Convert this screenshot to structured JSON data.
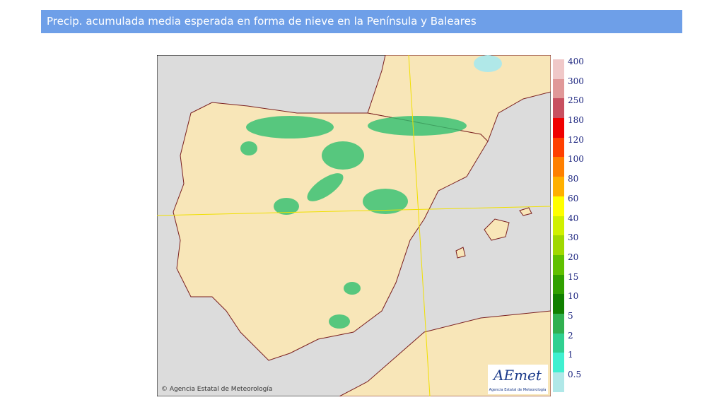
{
  "header": {
    "title": "Precip. acumulada media esperada en forma de nieve en la Península y Baleares"
  },
  "legend": {
    "items": [
      {
        "label": 400,
        "color": "#f0c8c8"
      },
      {
        "label": 300,
        "color": "#e09898"
      },
      {
        "label": 250,
        "color": "#c85060"
      },
      {
        "label": 180,
        "color": "#f00000"
      },
      {
        "label": 120,
        "color": "#ff4000"
      },
      {
        "label": 100,
        "color": "#ff8000"
      },
      {
        "label": 80,
        "color": "#ffb000"
      },
      {
        "label": 60,
        "color": "#ffff00"
      },
      {
        "label": 40,
        "color": "#d0f000"
      },
      {
        "label": 30,
        "color": "#a0d800"
      },
      {
        "label": 20,
        "color": "#60c000"
      },
      {
        "label": 15,
        "color": "#30a000"
      },
      {
        "label": 10,
        "color": "#108000"
      },
      {
        "label": 5,
        "color": "#30b050"
      },
      {
        "label": 2,
        "color": "#30d090"
      },
      {
        "label": 1,
        "color": "#40f0d0"
      },
      {
        "label": 0.5,
        "color": "#b0e8e8"
      }
    ]
  },
  "map": {
    "credit": "© Agencia Estatal de Meteorología"
  },
  "logo": {
    "text": "AEmet",
    "subtitle": "Agencia Estatal de Meteorología"
  }
}
